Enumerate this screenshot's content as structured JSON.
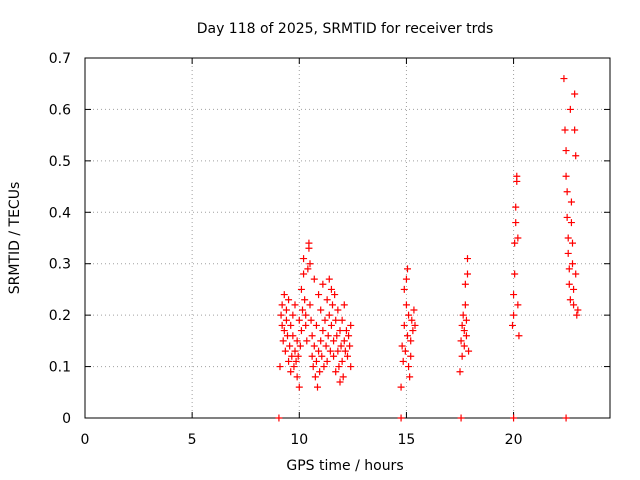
{
  "chart_data": {
    "type": "scatter",
    "title": "Day 118 of 2025, SRMTID for receiver trds",
    "xlabel": "GPS time / hours",
    "ylabel": "SRMTID / TECUs",
    "xlim": [
      0,
      24.5
    ],
    "ylim": [
      0,
      0.7
    ],
    "xticks": [
      0,
      5,
      10,
      15,
      20
    ],
    "xtick_labels": [
      "0",
      "5",
      "10",
      "15",
      "20"
    ],
    "yticks": [
      0,
      0.1,
      0.2,
      0.3,
      0.4,
      0.5,
      0.6,
      0.7
    ],
    "ytick_labels": [
      "0",
      "0.1",
      "0.2",
      "0.3",
      "0.4",
      "0.5",
      "0.6",
      "0.7"
    ],
    "grid": true,
    "marker": "plus",
    "series": [
      {
        "name": "SRMTID",
        "color": "#ff0000",
        "points": [
          [
            9.05,
            0.0
          ],
          [
            14.75,
            0.0
          ],
          [
            17.55,
            0.0
          ],
          [
            20.0,
            0.0
          ],
          [
            22.45,
            0.0
          ],
          [
            9.1,
            0.1
          ],
          [
            9.15,
            0.2
          ],
          [
            9.2,
            0.18
          ],
          [
            9.2,
            0.22
          ],
          [
            9.25,
            0.15
          ],
          [
            9.3,
            0.24
          ],
          [
            9.3,
            0.17
          ],
          [
            9.35,
            0.13
          ],
          [
            9.4,
            0.21
          ],
          [
            9.4,
            0.19
          ],
          [
            9.45,
            0.16
          ],
          [
            9.5,
            0.11
          ],
          [
            9.5,
            0.23
          ],
          [
            9.55,
            0.14
          ],
          [
            9.6,
            0.18
          ],
          [
            9.6,
            0.09
          ],
          [
            9.65,
            0.12
          ],
          [
            9.7,
            0.2
          ],
          [
            9.7,
            0.16
          ],
          [
            9.75,
            0.1
          ],
          [
            9.8,
            0.13
          ],
          [
            9.8,
            0.22
          ],
          [
            9.85,
            0.11
          ],
          [
            9.9,
            0.15
          ],
          [
            9.9,
            0.08
          ],
          [
            9.95,
            0.12
          ],
          [
            10.0,
            0.06
          ],
          [
            10.0,
            0.19
          ],
          [
            10.05,
            0.14
          ],
          [
            10.1,
            0.25
          ],
          [
            10.1,
            0.17
          ],
          [
            10.15,
            0.21
          ],
          [
            10.2,
            0.31
          ],
          [
            10.2,
            0.28
          ],
          [
            10.25,
            0.23
          ],
          [
            10.3,
            0.2
          ],
          [
            10.3,
            0.18
          ],
          [
            10.35,
            0.15
          ],
          [
            10.4,
            0.29
          ],
          [
            10.45,
            0.34
          ],
          [
            10.45,
            0.33
          ],
          [
            10.5,
            0.3
          ],
          [
            10.5,
            0.22
          ],
          [
            10.55,
            0.19
          ],
          [
            10.6,
            0.12
          ],
          [
            10.6,
            0.16
          ],
          [
            10.65,
            0.1
          ],
          [
            10.7,
            0.14
          ],
          [
            10.7,
            0.27
          ],
          [
            10.75,
            0.08
          ],
          [
            10.8,
            0.11
          ],
          [
            10.8,
            0.18
          ],
          [
            10.85,
            0.06
          ],
          [
            10.9,
            0.13
          ],
          [
            10.9,
            0.24
          ],
          [
            10.95,
            0.09
          ],
          [
            11.0,
            0.15
          ],
          [
            11.0,
            0.21
          ],
          [
            11.05,
            0.12
          ],
          [
            11.1,
            0.17
          ],
          [
            11.1,
            0.26
          ],
          [
            11.15,
            0.1
          ],
          [
            11.2,
            0.19
          ],
          [
            11.25,
            0.14
          ],
          [
            11.3,
            0.23
          ],
          [
            11.3,
            0.11
          ],
          [
            11.35,
            0.16
          ],
          [
            11.4,
            0.27
          ],
          [
            11.4,
            0.2
          ],
          [
            11.45,
            0.13
          ],
          [
            11.5,
            0.25
          ],
          [
            11.5,
            0.18
          ],
          [
            11.55,
            0.22
          ],
          [
            11.6,
            0.15
          ],
          [
            11.6,
            0.12
          ],
          [
            11.65,
            0.24
          ],
          [
            11.7,
            0.19
          ],
          [
            11.7,
            0.09
          ],
          [
            11.75,
            0.16
          ],
          [
            11.8,
            0.21
          ],
          [
            11.8,
            0.13
          ],
          [
            11.85,
            0.1
          ],
          [
            11.9,
            0.07
          ],
          [
            11.9,
            0.17
          ],
          [
            11.95,
            0.14
          ],
          [
            12.0,
            0.19
          ],
          [
            12.0,
            0.11
          ],
          [
            12.05,
            0.08
          ],
          [
            12.1,
            0.15
          ],
          [
            12.1,
            0.22
          ],
          [
            12.15,
            0.13
          ],
          [
            12.2,
            0.17
          ],
          [
            12.25,
            0.12
          ],
          [
            12.3,
            0.16
          ],
          [
            12.35,
            0.14
          ],
          [
            12.4,
            0.1
          ],
          [
            12.4,
            0.18
          ],
          [
            14.75,
            0.06
          ],
          [
            14.8,
            0.14
          ],
          [
            14.85,
            0.11
          ],
          [
            14.9,
            0.18
          ],
          [
            14.9,
            0.25
          ],
          [
            14.95,
            0.13
          ],
          [
            15.0,
            0.22
          ],
          [
            15.0,
            0.27
          ],
          [
            15.05,
            0.16
          ],
          [
            15.05,
            0.29
          ],
          [
            15.1,
            0.1
          ],
          [
            15.1,
            0.2
          ],
          [
            15.15,
            0.08
          ],
          [
            15.2,
            0.15
          ],
          [
            15.2,
            0.12
          ],
          [
            15.25,
            0.19
          ],
          [
            15.3,
            0.17
          ],
          [
            15.35,
            0.21
          ],
          [
            15.4,
            0.18
          ],
          [
            17.5,
            0.09
          ],
          [
            17.55,
            0.15
          ],
          [
            17.6,
            0.18
          ],
          [
            17.6,
            0.12
          ],
          [
            17.65,
            0.2
          ],
          [
            17.7,
            0.14
          ],
          [
            17.7,
            0.17
          ],
          [
            17.75,
            0.22
          ],
          [
            17.75,
            0.26
          ],
          [
            17.8,
            0.19
          ],
          [
            17.8,
            0.16
          ],
          [
            17.85,
            0.28
          ],
          [
            17.85,
            0.31
          ],
          [
            17.9,
            0.13
          ],
          [
            19.95,
            0.18
          ],
          [
            20.0,
            0.2
          ],
          [
            20.0,
            0.24
          ],
          [
            20.05,
            0.28
          ],
          [
            20.05,
            0.34
          ],
          [
            20.1,
            0.38
          ],
          [
            20.1,
            0.41
          ],
          [
            20.15,
            0.46
          ],
          [
            20.15,
            0.47
          ],
          [
            20.2,
            0.22
          ],
          [
            20.2,
            0.35
          ],
          [
            20.25,
            0.16
          ],
          [
            22.35,
            0.66
          ],
          [
            22.4,
            0.56
          ],
          [
            22.45,
            0.52
          ],
          [
            22.45,
            0.47
          ],
          [
            22.5,
            0.44
          ],
          [
            22.5,
            0.39
          ],
          [
            22.55,
            0.35
          ],
          [
            22.55,
            0.32
          ],
          [
            22.6,
            0.29
          ],
          [
            22.6,
            0.26
          ],
          [
            22.65,
            0.23
          ],
          [
            22.65,
            0.6
          ],
          [
            22.7,
            0.42
          ],
          [
            22.7,
            0.38
          ],
          [
            22.75,
            0.34
          ],
          [
            22.75,
            0.3
          ],
          [
            22.8,
            0.25
          ],
          [
            22.8,
            0.22
          ],
          [
            22.85,
            0.56
          ],
          [
            22.85,
            0.63
          ],
          [
            22.9,
            0.51
          ],
          [
            22.9,
            0.28
          ],
          [
            22.95,
            0.2
          ],
          [
            23.0,
            0.21
          ]
        ]
      }
    ]
  }
}
